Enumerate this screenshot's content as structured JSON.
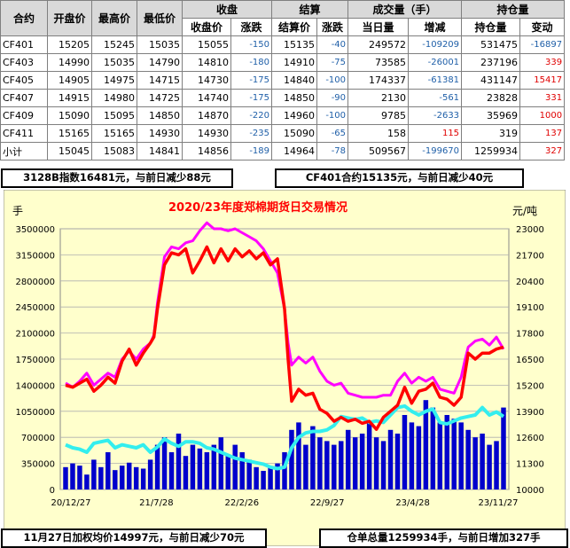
{
  "table": {
    "header_row1": [
      "合约",
      "开盘价",
      "最高价",
      "最低价",
      "收盘",
      "结算",
      "成交量（手）",
      "持仓量"
    ],
    "header_row2": [
      "收盘价",
      "涨跌",
      "结算价",
      "涨跌",
      "当日量",
      "增减",
      "持仓量",
      "变动"
    ],
    "rows": [
      {
        "contract": "CF401",
        "open": "15205",
        "high": "15245",
        "low": "15035",
        "close": "15055",
        "close_chg": "-150",
        "settle": "15135",
        "settle_chg": "-40",
        "vol": "249572",
        "vol_chg": "-109209",
        "oi": "531475",
        "oi_chg": "-16897"
      },
      {
        "contract": "CF403",
        "open": "14990",
        "high": "15035",
        "low": "14790",
        "close": "14810",
        "close_chg": "-180",
        "settle": "14910",
        "settle_chg": "-75",
        "vol": "73585",
        "vol_chg": "-26001",
        "oi": "237196",
        "oi_chg": "339"
      },
      {
        "contract": "CF405",
        "open": "14905",
        "high": "14975",
        "low": "14715",
        "close": "14730",
        "close_chg": "-175",
        "settle": "14840",
        "settle_chg": "-100",
        "vol": "174337",
        "vol_chg": "-61381",
        "oi": "431147",
        "oi_chg": "15417"
      },
      {
        "contract": "CF407",
        "open": "14915",
        "high": "14980",
        "low": "14725",
        "close": "14740",
        "close_chg": "-175",
        "settle": "14850",
        "settle_chg": "-90",
        "vol": "2130",
        "vol_chg": "-561",
        "oi": "23828",
        "oi_chg": "331"
      },
      {
        "contract": "CF409",
        "open": "15090",
        "high": "15095",
        "low": "14850",
        "close": "14870",
        "close_chg": "-220",
        "settle": "14960",
        "settle_chg": "-100",
        "vol": "9785",
        "vol_chg": "-2633",
        "oi": "35969",
        "oi_chg": "1000"
      },
      {
        "contract": "CF411",
        "open": "15165",
        "high": "15165",
        "low": "14930",
        "close": "14930",
        "close_chg": "-235",
        "settle": "15090",
        "settle_chg": "-65",
        "vol": "158",
        "vol_chg": "115",
        "oi": "319",
        "oi_chg": "137"
      },
      {
        "contract": "小计",
        "open": "15045",
        "high": "15083",
        "low": "14841",
        "close": "14856",
        "close_chg": "-189",
        "settle": "14964",
        "settle_chg": "-78",
        "vol": "509567",
        "vol_chg": "-199670",
        "oi": "1259934",
        "oi_chg": "327"
      }
    ]
  },
  "notes": {
    "index": "3128B指数16481元，与前日减少88元",
    "contract": "CF401合约15135元，与前日减少40元",
    "weighted": "11月27日加权均价14997元，与前日减少70元",
    "warehouse": "仓单总量1259934手，与前日增加327手"
  },
  "colors": {
    "chart_bg": "#ffffcc",
    "plot_bg": "#ffffcc",
    "volume_bars": "#0000cc",
    "price_line": "#ff0000",
    "index_line": "#ff00ff",
    "open_interest_line": "#33eeee",
    "title": "#ff0000",
    "negative": "#1f5fa8",
    "positive": "#e00000"
  },
  "chart_data": {
    "type": "line",
    "title": "2020/23年度郑棉期货日交易情况",
    "ylabel_left": "手",
    "ylabel_right": "元/吨",
    "left_axis": {
      "ylim": [
        0,
        3500000
      ],
      "ticks": [
        "0",
        "350000",
        "700000",
        "1050000",
        "1400000",
        "1750000",
        "2100000",
        "2450000",
        "2800000",
        "3150000",
        "3500000"
      ]
    },
    "right_axis": {
      "ylim": [
        10000,
        23000
      ],
      "ticks": [
        "10000",
        "11300",
        "12600",
        "13900",
        "15200",
        "16500",
        "17800",
        "19100",
        "20400",
        "21700",
        "23000"
      ]
    },
    "x_tick_labels": [
      "20/12/27",
      "21/7/28",
      "22/2/26",
      "22/9/27",
      "23/4/28",
      "23/11/27"
    ],
    "grid": true,
    "series": [
      {
        "axis": "right",
        "style": "line",
        "x": [
          0,
          8,
          16,
          24,
          32,
          40,
          48,
          56,
          64,
          72,
          80,
          88,
          96,
          100,
          104,
          112,
          120,
          128,
          136,
          144,
          152,
          160,
          168,
          176,
          184,
          192,
          200,
          208,
          216,
          224,
          232,
          240,
          248,
          252,
          256,
          264,
          272,
          280,
          288,
          296,
          304,
          312,
          320,
          328,
          336,
          344,
          352,
          360,
          368,
          376,
          384,
          392,
          400,
          408,
          416,
          424,
          432,
          440,
          448,
          452,
          456,
          464,
          472,
          480,
          488,
          496
        ],
        "y": [
          15200,
          15100,
          15300,
          15500,
          14900,
          15200,
          15600,
          15300,
          16400,
          17000,
          16200,
          16800,
          17300,
          17600,
          19000,
          21200,
          21800,
          21700,
          22000,
          20800,
          21400,
          22100,
          21300,
          22000,
          21400,
          22000,
          21600,
          21900,
          21500,
          21800,
          21200,
          21500,
          19000,
          16500,
          14400,
          15000,
          14700,
          14800,
          14000,
          13800,
          13400,
          13600,
          13400,
          13500,
          13300,
          13400,
          13000,
          13600,
          13900,
          14200,
          15100,
          14300,
          14900,
          15000,
          15300,
          14600,
          14500,
          14200,
          14600,
          15700,
          16800,
          16500,
          16800,
          16800,
          17000,
          17100
        ]
      },
      {
        "axis": "right",
        "style": "line",
        "x": [
          0,
          8,
          16,
          24,
          32,
          40,
          48,
          56,
          64,
          72,
          80,
          88,
          96,
          100,
          104,
          112,
          120,
          128,
          136,
          144,
          152,
          160,
          168,
          176,
          184,
          192,
          200,
          208,
          216,
          224,
          232,
          240,
          248,
          252,
          256,
          264,
          272,
          280,
          288,
          296,
          304,
          312,
          320,
          328,
          336,
          344,
          352,
          360,
          368,
          376,
          384,
          392,
          400,
          408,
          416,
          424,
          432,
          440,
          448,
          452,
          456,
          464,
          472,
          480,
          488,
          496
        ],
        "y": [
          15300,
          15100,
          15400,
          15800,
          15200,
          15500,
          15800,
          15600,
          16500,
          16900,
          16500,
          17000,
          17300,
          17700,
          19300,
          21600,
          22100,
          22000,
          22300,
          22400,
          22900,
          23300,
          23000,
          23000,
          22900,
          23000,
          22800,
          22600,
          22400,
          22000,
          21400,
          20800,
          19000,
          17300,
          16200,
          16600,
          16300,
          16600,
          15900,
          15400,
          15200,
          15300,
          14800,
          14700,
          14600,
          14600,
          14600,
          14700,
          14700,
          15400,
          15800,
          15300,
          15600,
          15400,
          15600,
          15000,
          14900,
          14800,
          15600,
          16400,
          17100,
          17400,
          17500,
          17200,
          17600,
          17000
        ]
      },
      {
        "axis": "left",
        "style": "line",
        "x": [
          0,
          8,
          16,
          24,
          32,
          40,
          48,
          56,
          64,
          72,
          80,
          88,
          96,
          104,
          112,
          120,
          128,
          136,
          144,
          152,
          160,
          168,
          176,
          184,
          192,
          200,
          208,
          216,
          224,
          232,
          240,
          248,
          256,
          264,
          272,
          280,
          288,
          296,
          304,
          312,
          320,
          328,
          336,
          344,
          352,
          360,
          368,
          376,
          384,
          392,
          400,
          408,
          416,
          424,
          432,
          440,
          448,
          456,
          464,
          472,
          480,
          488,
          496
        ],
        "y": [
          600000,
          560000,
          540000,
          500000,
          620000,
          640000,
          660000,
          560000,
          600000,
          580000,
          560000,
          600000,
          500000,
          570000,
          680000,
          620000,
          580000,
          640000,
          640000,
          620000,
          560000,
          540000,
          500000,
          460000,
          420000,
          400000,
          380000,
          360000,
          340000,
          300000,
          280000,
          300000,
          560000,
          700000,
          760000,
          780000,
          780000,
          800000,
          860000,
          980000,
          960000,
          940000,
          960000,
          900000,
          920000,
          900000,
          1000000,
          1100000,
          1120000,
          1050000,
          1000000,
          1050000,
          1080000,
          900000,
          880000,
          920000,
          960000,
          980000,
          1000000,
          1100000,
          1000000,
          1040000,
          980000
        ]
      },
      {
        "axis": "left",
        "style": "bar",
        "x": [
          0,
          8,
          16,
          24,
          32,
          40,
          48,
          56,
          64,
          72,
          80,
          88,
          96,
          104,
          112,
          120,
          128,
          136,
          144,
          152,
          160,
          168,
          176,
          184,
          192,
          200,
          208,
          216,
          224,
          232,
          240,
          248,
          256,
          264,
          272,
          280,
          288,
          296,
          304,
          312,
          320,
          328,
          336,
          344,
          352,
          360,
          368,
          376,
          384,
          392,
          400,
          408,
          416,
          424,
          432,
          440,
          448,
          456,
          464,
          472,
          480,
          488,
          496
        ],
        "y": [
          300000,
          350000,
          320000,
          200000,
          400000,
          300000,
          500000,
          260000,
          320000,
          360000,
          300000,
          280000,
          400000,
          600000,
          700000,
          500000,
          750000,
          450000,
          600000,
          550000,
          500000,
          600000,
          700000,
          450000,
          600000,
          500000,
          400000,
          300000,
          250000,
          300000,
          350000,
          500000,
          800000,
          900000,
          600000,
          850000,
          700000,
          650000,
          600000,
          650000,
          800000,
          700000,
          750000,
          900000,
          700000,
          650000,
          800000,
          750000,
          1000000,
          900000,
          850000,
          1200000,
          1100000,
          900000,
          1000000,
          950000,
          900000,
          800000,
          700000,
          750000,
          600000,
          650000,
          1100000
        ]
      }
    ],
    "annotations": []
  }
}
